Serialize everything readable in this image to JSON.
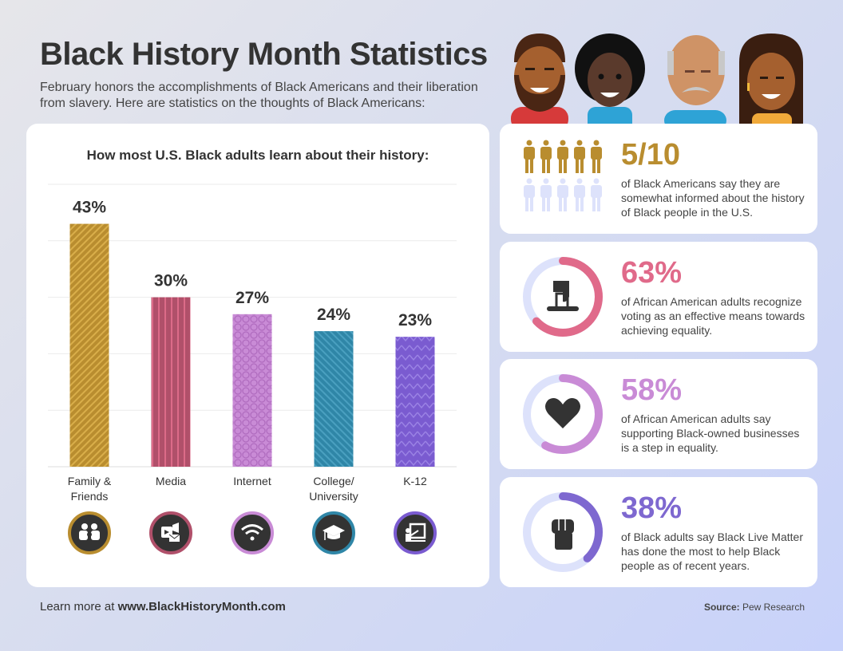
{
  "header": {
    "title": "Black History Month Statistics",
    "subtitle": "February honors the accomplishments of Black Americans and their liberation from slavery. Here are statistics on the thoughts of Black Americans:"
  },
  "chart_data": {
    "type": "bar",
    "title": "How most U.S. Black adults learn about their history:",
    "categories": [
      "Family & Friends",
      "Media",
      "Internet",
      "College/ University",
      "K-12"
    ],
    "category_lines": [
      [
        "Family &",
        "Friends"
      ],
      [
        "Media"
      ],
      [
        "Internet"
      ],
      [
        "College/",
        "University"
      ],
      [
        "K-12"
      ]
    ],
    "values": [
      43,
      30,
      27,
      24,
      23
    ],
    "labels": [
      "43%",
      "30%",
      "27%",
      "24%",
      "23%"
    ],
    "ylim": [
      0,
      50
    ],
    "grid": true,
    "colors": [
      "#b98d2f",
      "#b0506a",
      "#c98bd6",
      "#2f86a7",
      "#7a5bd0"
    ],
    "patterns": [
      "diagonal-stripes",
      "vertical-stripes",
      "circles",
      "diagonal-stripes",
      "zigzag"
    ],
    "icons": [
      "family-icon",
      "media-icon",
      "wifi-icon",
      "graduation-cap-icon",
      "teacher-board-icon"
    ]
  },
  "stats": [
    {
      "value": "5/10",
      "text": "of Black Americans say they are somewhat informed about the history of Black people in the U.S.",
      "color": "#b98d2f",
      "filled": 5,
      "total": 10,
      "icon": "person-icon"
    },
    {
      "value": "63%",
      "text": "of African American adults recognize voting as an effective means towards achieving equality.",
      "color": "#e06a8a",
      "fraction": 0.63,
      "icon": "ballot-icon"
    },
    {
      "value": "58%",
      "text": "of African American adults say supporting Black-owned businesses is a step in equality.",
      "color": "#c98bd6",
      "fraction": 0.58,
      "icon": "heart-icon"
    },
    {
      "value": "38%",
      "text": "of Black adults say Black Live Matter has done the most to help Black people as of recent years.",
      "color": "#7e68d0",
      "fraction": 0.38,
      "icon": "raised-fist-icon"
    }
  ],
  "ring_track_color": "#dde2fb",
  "footer": {
    "learn_prefix": "Learn more at ",
    "learn_link": "www.BlackHistoryMonth.com",
    "source_label": "Source:",
    "source_value": " Pew Research"
  }
}
